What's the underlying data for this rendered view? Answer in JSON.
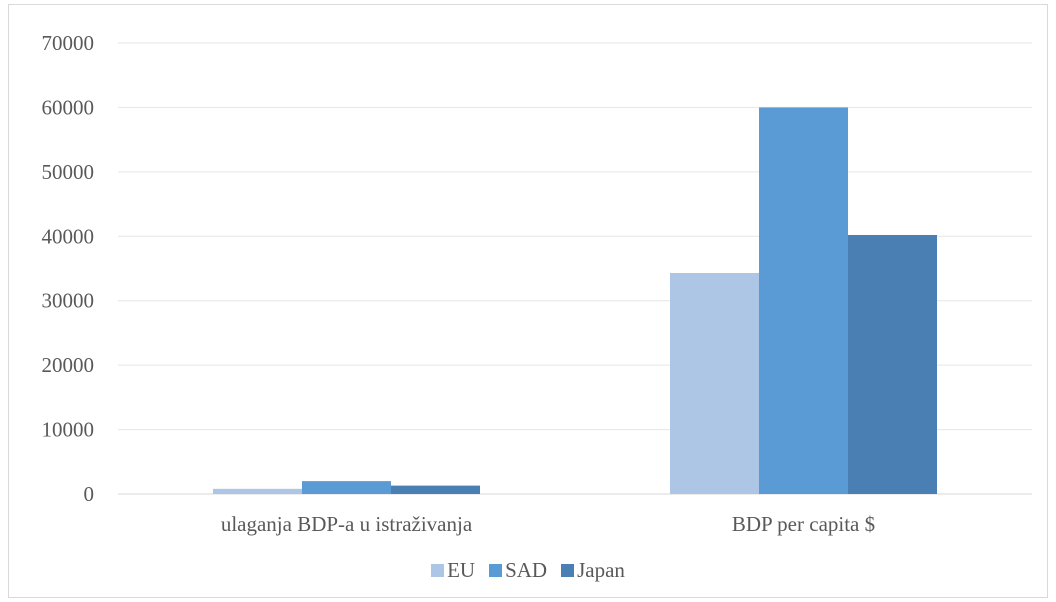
{
  "chart_data": {
    "type": "bar",
    "categories": [
      "ulaganja BDP-a u istraživanja",
      "BDP per capita $"
    ],
    "series": [
      {
        "name": "EU",
        "values": [
          800,
          34300
        ],
        "color": "#adc6e6"
      },
      {
        "name": "SAD",
        "values": [
          2000,
          60000
        ],
        "color": "#5b9bd5"
      },
      {
        "name": "Japan",
        "values": [
          1300,
          40200
        ],
        "color": "#4a7fb3"
      }
    ],
    "ylim": [
      0,
      70000
    ],
    "yticks": [
      "0",
      "10000",
      "20000",
      "30000",
      "40000",
      "50000",
      "60000",
      "70000"
    ],
    "grid": true,
    "legend_position": "bottom"
  }
}
